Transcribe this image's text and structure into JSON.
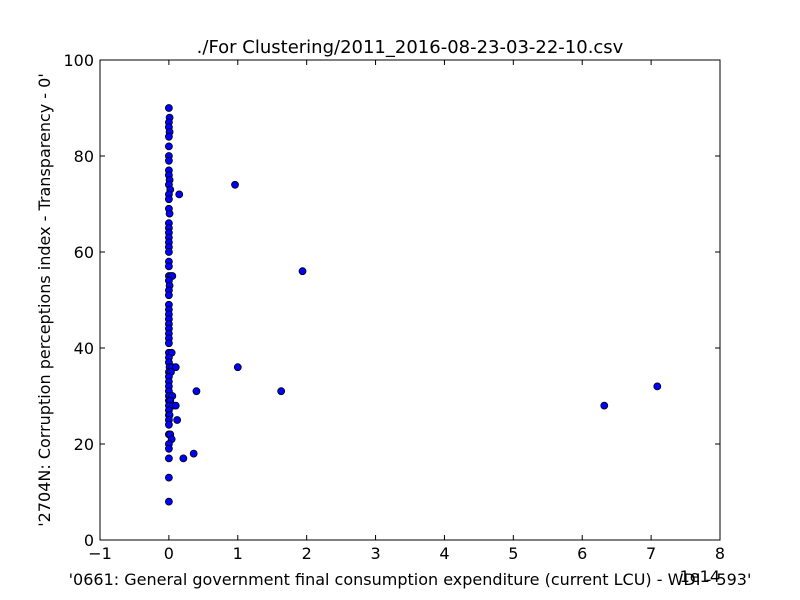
{
  "chart_data": {
    "type": "scatter",
    "title": "./For Clustering/2011_2016-08-23-03-22-10.csv",
    "xlabel": "'0661: General government final consumption expenditure  (current LCU) - WDI - 593'",
    "ylabel": "'2704N: Corruption perceptions index - Transparency - 0'",
    "x_offset_text": "1e14",
    "xlim": [
      -1,
      8
    ],
    "ylim": [
      0,
      100
    ],
    "xticks": [
      -1,
      0,
      1,
      2,
      3,
      4,
      5,
      6,
      7,
      8
    ],
    "xtick_labels": [
      "−1",
      "0",
      "1",
      "2",
      "3",
      "4",
      "5",
      "6",
      "7",
      "8"
    ],
    "yticks": [
      0,
      20,
      40,
      60,
      80,
      100
    ],
    "ytick_labels": [
      "0",
      "20",
      "40",
      "60",
      "80",
      "100"
    ],
    "grid": false,
    "marker_color": "#0000ff",
    "marker_edge": "#000000",
    "points": [
      {
        "x": 0.0,
        "y": 90
      },
      {
        "x": 0.01,
        "y": 88
      },
      {
        "x": 0.0,
        "y": 87
      },
      {
        "x": 0.0,
        "y": 86
      },
      {
        "x": 0.01,
        "y": 85
      },
      {
        "x": 0.0,
        "y": 84
      },
      {
        "x": 0.0,
        "y": 82
      },
      {
        "x": 0.0,
        "y": 80
      },
      {
        "x": 0.0,
        "y": 79
      },
      {
        "x": 0.0,
        "y": 77
      },
      {
        "x": 0.0,
        "y": 76
      },
      {
        "x": 0.01,
        "y": 75
      },
      {
        "x": 0.0,
        "y": 74
      },
      {
        "x": 0.02,
        "y": 73
      },
      {
        "x": 0.0,
        "y": 72
      },
      {
        "x": 0.15,
        "y": 72
      },
      {
        "x": 0.0,
        "y": 71
      },
      {
        "x": 0.0,
        "y": 69
      },
      {
        "x": 0.01,
        "y": 68
      },
      {
        "x": 0.0,
        "y": 66
      },
      {
        "x": 0.0,
        "y": 65
      },
      {
        "x": 0.0,
        "y": 64
      },
      {
        "x": 0.0,
        "y": 63
      },
      {
        "x": 0.0,
        "y": 62
      },
      {
        "x": 0.0,
        "y": 61
      },
      {
        "x": 0.0,
        "y": 60
      },
      {
        "x": 0.0,
        "y": 58
      },
      {
        "x": 0.0,
        "y": 57
      },
      {
        "x": 0.0,
        "y": 55
      },
      {
        "x": 0.03,
        "y": 55
      },
      {
        "x": 0.05,
        "y": 55
      },
      {
        "x": 0.0,
        "y": 54
      },
      {
        "x": 0.01,
        "y": 53
      },
      {
        "x": 0.0,
        "y": 52
      },
      {
        "x": 0.0,
        "y": 51
      },
      {
        "x": 0.0,
        "y": 49
      },
      {
        "x": 0.0,
        "y": 48
      },
      {
        "x": 0.0,
        "y": 47
      },
      {
        "x": 0.0,
        "y": 46
      },
      {
        "x": 0.0,
        "y": 45
      },
      {
        "x": 0.0,
        "y": 44
      },
      {
        "x": 0.0,
        "y": 43
      },
      {
        "x": 0.0,
        "y": 42
      },
      {
        "x": 0.0,
        "y": 41
      },
      {
        "x": 0.0,
        "y": 39
      },
      {
        "x": 0.04,
        "y": 39
      },
      {
        "x": 0.0,
        "y": 38
      },
      {
        "x": 0.0,
        "y": 37
      },
      {
        "x": 0.01,
        "y": 36
      },
      {
        "x": 0.05,
        "y": 36
      },
      {
        "x": 0.1,
        "y": 36
      },
      {
        "x": 0.0,
        "y": 35
      },
      {
        "x": 0.03,
        "y": 35
      },
      {
        "x": 0.0,
        "y": 34
      },
      {
        "x": 0.0,
        "y": 33
      },
      {
        "x": 0.0,
        "y": 32
      },
      {
        "x": 0.0,
        "y": 31
      },
      {
        "x": 0.0,
        "y": 30
      },
      {
        "x": 0.05,
        "y": 30
      },
      {
        "x": 0.0,
        "y": 29
      },
      {
        "x": 0.02,
        "y": 29
      },
      {
        "x": 0.0,
        "y": 28
      },
      {
        "x": 0.06,
        "y": 28
      },
      {
        "x": 0.1,
        "y": 28
      },
      {
        "x": 0.0,
        "y": 27
      },
      {
        "x": 0.0,
        "y": 26
      },
      {
        "x": 0.01,
        "y": 26
      },
      {
        "x": 0.0,
        "y": 25
      },
      {
        "x": 0.12,
        "y": 25
      },
      {
        "x": 0.0,
        "y": 24
      },
      {
        "x": 0.0,
        "y": 22
      },
      {
        "x": 0.02,
        "y": 22
      },
      {
        "x": 0.04,
        "y": 21
      },
      {
        "x": 0.0,
        "y": 20
      },
      {
        "x": 0.0,
        "y": 19
      },
      {
        "x": 0.0,
        "y": 17
      },
      {
        "x": 0.0,
        "y": 13
      },
      {
        "x": 0.0,
        "y": 8
      },
      {
        "x": 0.21,
        "y": 17
      },
      {
        "x": 0.36,
        "y": 18
      },
      {
        "x": 0.4,
        "y": 31
      },
      {
        "x": 0.96,
        "y": 74
      },
      {
        "x": 1.0,
        "y": 36
      },
      {
        "x": 1.63,
        "y": 31
      },
      {
        "x": 1.94,
        "y": 56
      },
      {
        "x": 6.32,
        "y": 28
      },
      {
        "x": 7.09,
        "y": 32
      }
    ]
  }
}
